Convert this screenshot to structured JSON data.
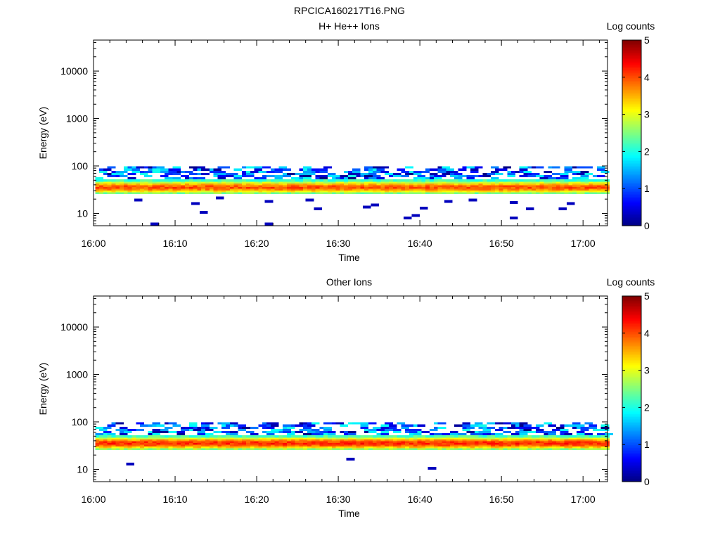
{
  "figure_title": "RPCICA160217T16.PNG",
  "colors": {
    "axis": "#000000",
    "background": "#ffffff"
  },
  "chart_data": [
    {
      "type": "heatmap",
      "title": "H+ He++ Ions",
      "xlabel": "Time",
      "ylabel": "Energy (eV)",
      "colorbar_label": "Log counts",
      "colorbar_ticks": [
        "0",
        "1",
        "2",
        "3",
        "4",
        "5"
      ],
      "colorbar_range": [
        0,
        5
      ],
      "colormap": "jet",
      "x_ticks": [
        "16:00",
        "16:10",
        "16:20",
        "16:30",
        "16:40",
        "16:50",
        "17:00"
      ],
      "x_range": [
        "16:00",
        "17:03"
      ],
      "y_scale": "log",
      "y_range": [
        5.5,
        45000
      ],
      "y_ticks": [
        "10",
        "100",
        "1000",
        "10000"
      ],
      "main_band": {
        "time_range": [
          "16:00",
          "17:03"
        ],
        "energy_low_ev": 26,
        "energy_high_ev": 52,
        "peak_energy_ev": 36,
        "peak_log_counts": 3.4
      },
      "upper_band": {
        "energy_low_ev": 52,
        "energy_high_ev": 98,
        "max_log_counts": 2.0
      },
      "sparse_low_energy_points": [
        {
          "time": "16:05",
          "energy_ev": 19,
          "log_counts": 0.3
        },
        {
          "time": "16:07",
          "energy_ev": 6,
          "log_counts": 0.3
        },
        {
          "time": "16:12",
          "energy_ev": 16,
          "log_counts": 0.3
        },
        {
          "time": "16:13",
          "energy_ev": 10.5,
          "log_counts": 0.3
        },
        {
          "time": "16:15",
          "energy_ev": 21,
          "log_counts": 0.3
        },
        {
          "time": "16:21",
          "energy_ev": 6,
          "log_counts": 0.3
        },
        {
          "time": "16:21",
          "energy_ev": 18,
          "log_counts": 0.3
        },
        {
          "time": "16:26",
          "energy_ev": 19,
          "log_counts": 0.3
        },
        {
          "time": "16:27",
          "energy_ev": 12.5,
          "log_counts": 0.3
        },
        {
          "time": "16:33",
          "energy_ev": 13.5,
          "log_counts": 0.3
        },
        {
          "time": "16:34",
          "energy_ev": 15,
          "log_counts": 0.3
        },
        {
          "time": "16:38",
          "energy_ev": 8,
          "log_counts": 0.3
        },
        {
          "time": "16:39",
          "energy_ev": 9,
          "log_counts": 0.3
        },
        {
          "time": "16:40",
          "energy_ev": 13,
          "log_counts": 0.3
        },
        {
          "time": "16:43",
          "energy_ev": 18,
          "log_counts": 0.3
        },
        {
          "time": "16:46",
          "energy_ev": 19,
          "log_counts": 0.3
        },
        {
          "time": "16:51",
          "energy_ev": 8,
          "log_counts": 0.3
        },
        {
          "time": "16:51",
          "energy_ev": 17,
          "log_counts": 0.3
        },
        {
          "time": "16:53",
          "energy_ev": 12.5,
          "log_counts": 0.3
        },
        {
          "time": "16:57",
          "energy_ev": 12.5,
          "log_counts": 0.3
        },
        {
          "time": "16:58",
          "energy_ev": 16,
          "log_counts": 0.3
        }
      ],
      "seed": 7
    },
    {
      "type": "heatmap",
      "title": "Other Ions",
      "xlabel": "Time",
      "ylabel": "Energy (eV)",
      "colorbar_label": "Log counts",
      "colorbar_ticks": [
        "0",
        "1",
        "2",
        "3",
        "4",
        "5"
      ],
      "colorbar_range": [
        0,
        5
      ],
      "colormap": "jet",
      "x_ticks": [
        "16:00",
        "16:10",
        "16:20",
        "16:30",
        "16:40",
        "16:50",
        "17:00"
      ],
      "x_range": [
        "16:00",
        "17:03"
      ],
      "y_scale": "log",
      "y_range": [
        5.5,
        45000
      ],
      "y_ticks": [
        "10",
        "100",
        "1000",
        "10000"
      ],
      "main_band": {
        "time_range": [
          "16:00",
          "17:03"
        ],
        "energy_low_ev": 26,
        "energy_high_ev": 52,
        "peak_energy_ev": 36,
        "peak_log_counts": 3.6
      },
      "upper_band": {
        "energy_low_ev": 52,
        "energy_high_ev": 98,
        "max_log_counts": 2.0
      },
      "sparse_low_energy_points": [
        {
          "time": "16:04",
          "energy_ev": 13,
          "log_counts": 0.3
        },
        {
          "time": "16:31",
          "energy_ev": 16.5,
          "log_counts": 0.3
        },
        {
          "time": "16:41",
          "energy_ev": 10.5,
          "log_counts": 0.3
        }
      ],
      "seed": 19
    }
  ]
}
